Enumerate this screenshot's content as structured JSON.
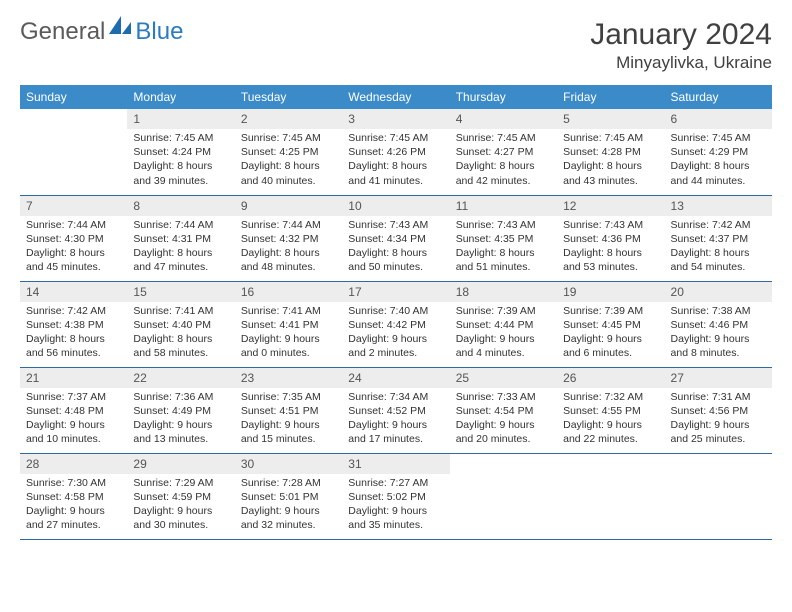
{
  "brand": {
    "word1": "General",
    "word2": "Blue"
  },
  "title": "January 2024",
  "location": "Minyaylivka, Ukraine",
  "colors": {
    "header_bg": "#3b8bc9",
    "header_text": "#ffffff",
    "row_border": "#2f6aa0",
    "daynum_bg": "#ededed",
    "brand_gray": "#5a5a5a",
    "brand_blue": "#2b7bbf"
  },
  "weekdays": [
    "Sunday",
    "Monday",
    "Tuesday",
    "Wednesday",
    "Thursday",
    "Friday",
    "Saturday"
  ],
  "cells": [
    {
      "n": "",
      "sr": "",
      "ss": "",
      "dl": ""
    },
    {
      "n": "1",
      "sr": "Sunrise: 7:45 AM",
      "ss": "Sunset: 4:24 PM",
      "dl": "Daylight: 8 hours and 39 minutes."
    },
    {
      "n": "2",
      "sr": "Sunrise: 7:45 AM",
      "ss": "Sunset: 4:25 PM",
      "dl": "Daylight: 8 hours and 40 minutes."
    },
    {
      "n": "3",
      "sr": "Sunrise: 7:45 AM",
      "ss": "Sunset: 4:26 PM",
      "dl": "Daylight: 8 hours and 41 minutes."
    },
    {
      "n": "4",
      "sr": "Sunrise: 7:45 AM",
      "ss": "Sunset: 4:27 PM",
      "dl": "Daylight: 8 hours and 42 minutes."
    },
    {
      "n": "5",
      "sr": "Sunrise: 7:45 AM",
      "ss": "Sunset: 4:28 PM",
      "dl": "Daylight: 8 hours and 43 minutes."
    },
    {
      "n": "6",
      "sr": "Sunrise: 7:45 AM",
      "ss": "Sunset: 4:29 PM",
      "dl": "Daylight: 8 hours and 44 minutes."
    },
    {
      "n": "7",
      "sr": "Sunrise: 7:44 AM",
      "ss": "Sunset: 4:30 PM",
      "dl": "Daylight: 8 hours and 45 minutes."
    },
    {
      "n": "8",
      "sr": "Sunrise: 7:44 AM",
      "ss": "Sunset: 4:31 PM",
      "dl": "Daylight: 8 hours and 47 minutes."
    },
    {
      "n": "9",
      "sr": "Sunrise: 7:44 AM",
      "ss": "Sunset: 4:32 PM",
      "dl": "Daylight: 8 hours and 48 minutes."
    },
    {
      "n": "10",
      "sr": "Sunrise: 7:43 AM",
      "ss": "Sunset: 4:34 PM",
      "dl": "Daylight: 8 hours and 50 minutes."
    },
    {
      "n": "11",
      "sr": "Sunrise: 7:43 AM",
      "ss": "Sunset: 4:35 PM",
      "dl": "Daylight: 8 hours and 51 minutes."
    },
    {
      "n": "12",
      "sr": "Sunrise: 7:43 AM",
      "ss": "Sunset: 4:36 PM",
      "dl": "Daylight: 8 hours and 53 minutes."
    },
    {
      "n": "13",
      "sr": "Sunrise: 7:42 AM",
      "ss": "Sunset: 4:37 PM",
      "dl": "Daylight: 8 hours and 54 minutes."
    },
    {
      "n": "14",
      "sr": "Sunrise: 7:42 AM",
      "ss": "Sunset: 4:38 PM",
      "dl": "Daylight: 8 hours and 56 minutes."
    },
    {
      "n": "15",
      "sr": "Sunrise: 7:41 AM",
      "ss": "Sunset: 4:40 PM",
      "dl": "Daylight: 8 hours and 58 minutes."
    },
    {
      "n": "16",
      "sr": "Sunrise: 7:41 AM",
      "ss": "Sunset: 4:41 PM",
      "dl": "Daylight: 9 hours and 0 minutes."
    },
    {
      "n": "17",
      "sr": "Sunrise: 7:40 AM",
      "ss": "Sunset: 4:42 PM",
      "dl": "Daylight: 9 hours and 2 minutes."
    },
    {
      "n": "18",
      "sr": "Sunrise: 7:39 AM",
      "ss": "Sunset: 4:44 PM",
      "dl": "Daylight: 9 hours and 4 minutes."
    },
    {
      "n": "19",
      "sr": "Sunrise: 7:39 AM",
      "ss": "Sunset: 4:45 PM",
      "dl": "Daylight: 9 hours and 6 minutes."
    },
    {
      "n": "20",
      "sr": "Sunrise: 7:38 AM",
      "ss": "Sunset: 4:46 PM",
      "dl": "Daylight: 9 hours and 8 minutes."
    },
    {
      "n": "21",
      "sr": "Sunrise: 7:37 AM",
      "ss": "Sunset: 4:48 PM",
      "dl": "Daylight: 9 hours and 10 minutes."
    },
    {
      "n": "22",
      "sr": "Sunrise: 7:36 AM",
      "ss": "Sunset: 4:49 PM",
      "dl": "Daylight: 9 hours and 13 minutes."
    },
    {
      "n": "23",
      "sr": "Sunrise: 7:35 AM",
      "ss": "Sunset: 4:51 PM",
      "dl": "Daylight: 9 hours and 15 minutes."
    },
    {
      "n": "24",
      "sr": "Sunrise: 7:34 AM",
      "ss": "Sunset: 4:52 PM",
      "dl": "Daylight: 9 hours and 17 minutes."
    },
    {
      "n": "25",
      "sr": "Sunrise: 7:33 AM",
      "ss": "Sunset: 4:54 PM",
      "dl": "Daylight: 9 hours and 20 minutes."
    },
    {
      "n": "26",
      "sr": "Sunrise: 7:32 AM",
      "ss": "Sunset: 4:55 PM",
      "dl": "Daylight: 9 hours and 22 minutes."
    },
    {
      "n": "27",
      "sr": "Sunrise: 7:31 AM",
      "ss": "Sunset: 4:56 PM",
      "dl": "Daylight: 9 hours and 25 minutes."
    },
    {
      "n": "28",
      "sr": "Sunrise: 7:30 AM",
      "ss": "Sunset: 4:58 PM",
      "dl": "Daylight: 9 hours and 27 minutes."
    },
    {
      "n": "29",
      "sr": "Sunrise: 7:29 AM",
      "ss": "Sunset: 4:59 PM",
      "dl": "Daylight: 9 hours and 30 minutes."
    },
    {
      "n": "30",
      "sr": "Sunrise: 7:28 AM",
      "ss": "Sunset: 5:01 PM",
      "dl": "Daylight: 9 hours and 32 minutes."
    },
    {
      "n": "31",
      "sr": "Sunrise: 7:27 AM",
      "ss": "Sunset: 5:02 PM",
      "dl": "Daylight: 9 hours and 35 minutes."
    },
    {
      "n": "",
      "sr": "",
      "ss": "",
      "dl": ""
    },
    {
      "n": "",
      "sr": "",
      "ss": "",
      "dl": ""
    },
    {
      "n": "",
      "sr": "",
      "ss": "",
      "dl": ""
    }
  ]
}
